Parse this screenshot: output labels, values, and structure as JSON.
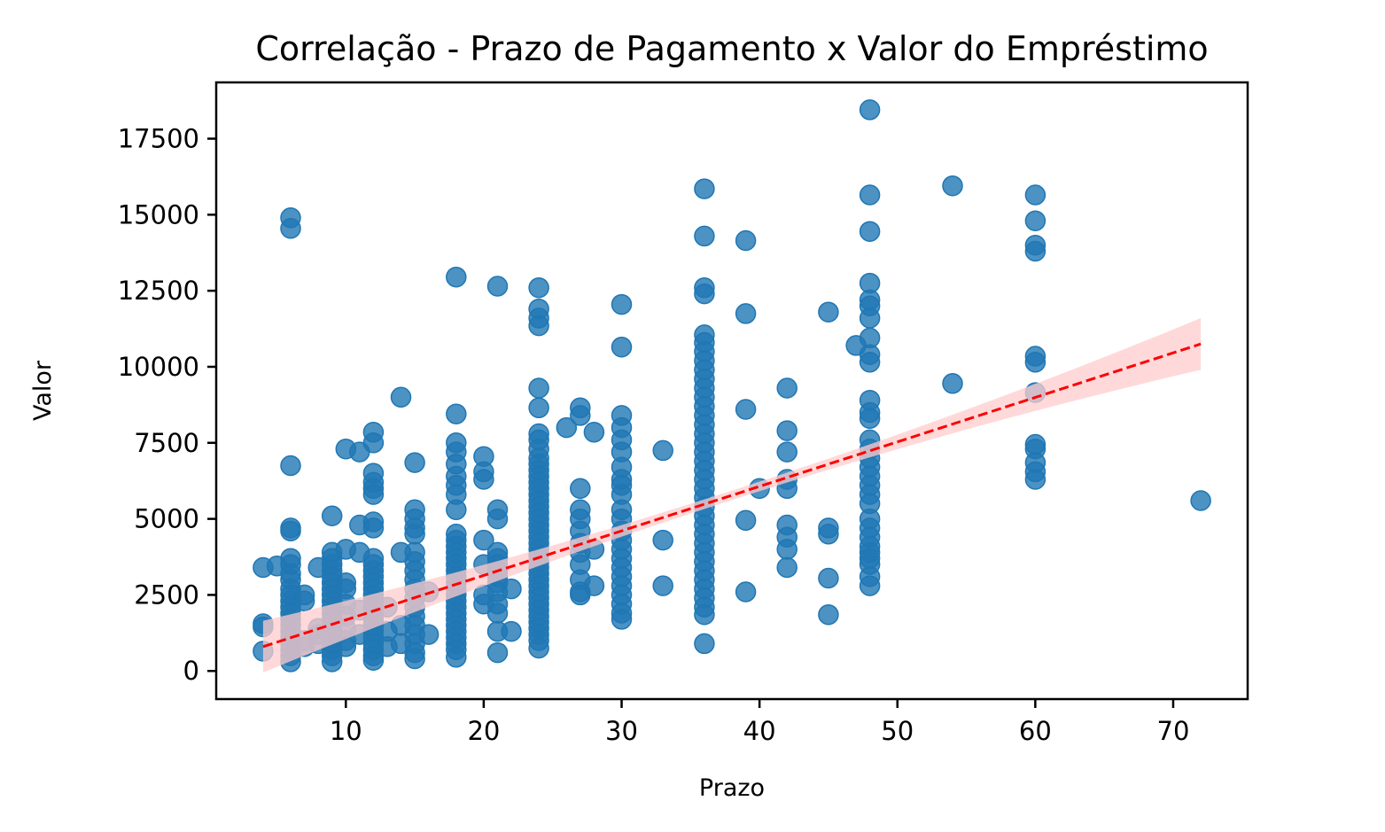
{
  "chart_data": {
    "type": "scatter",
    "title": "Correlação - Prazo de Pagamento x Valor do Empréstimo",
    "xlabel": "Prazo",
    "ylabel": "Valor",
    "xlim": [
      0.6,
      75.4
    ],
    "ylim": [
      -925,
      19350
    ],
    "xticks": [
      10,
      20,
      30,
      40,
      50,
      60,
      70
    ],
    "yticks": [
      0,
      2500,
      5000,
      7500,
      10000,
      12500,
      15000,
      17500
    ],
    "grid": false,
    "colors": {
      "points": "#1f77b4",
      "regression": "#ff0000",
      "confidence_band": "#ffcccc"
    },
    "regression": {
      "x": [
        4,
        72
      ],
      "y": [
        800,
        10750
      ],
      "ci_lower_end": 9900,
      "ci_upper_end": 11600
    },
    "points": [
      [
        4,
        3400
      ],
      [
        4,
        1550
      ],
      [
        4,
        1450
      ],
      [
        4,
        650
      ],
      [
        5,
        3450
      ],
      [
        6,
        14900
      ],
      [
        6,
        14550
      ],
      [
        6,
        6750
      ],
      [
        6,
        4700
      ],
      [
        6,
        4600
      ],
      [
        6,
        3700
      ],
      [
        6,
        3500
      ],
      [
        6,
        3200
      ],
      [
        6,
        3000
      ],
      [
        6,
        2700
      ],
      [
        6,
        2500
      ],
      [
        6,
        2300
      ],
      [
        6,
        2100
      ],
      [
        6,
        1900
      ],
      [
        6,
        1700
      ],
      [
        6,
        1500
      ],
      [
        6,
        1300
      ],
      [
        6,
        1100
      ],
      [
        6,
        900
      ],
      [
        6,
        700
      ],
      [
        6,
        500
      ],
      [
        6,
        300
      ],
      [
        7,
        2500
      ],
      [
        7,
        2300
      ],
      [
        7,
        1000
      ],
      [
        7,
        800
      ],
      [
        8,
        3400
      ],
      [
        8,
        1400
      ],
      [
        8,
        1200
      ],
      [
        8,
        900
      ],
      [
        9,
        5100
      ],
      [
        9,
        3900
      ],
      [
        9,
        3700
      ],
      [
        9,
        3500
      ],
      [
        9,
        3300
      ],
      [
        9,
        3100
      ],
      [
        9,
        2900
      ],
      [
        9,
        2700
      ],
      [
        9,
        2500
      ],
      [
        9,
        2300
      ],
      [
        9,
        2100
      ],
      [
        9,
        1900
      ],
      [
        9,
        1700
      ],
      [
        9,
        1500
      ],
      [
        9,
        1300
      ],
      [
        9,
        1100
      ],
      [
        9,
        900
      ],
      [
        9,
        700
      ],
      [
        9,
        500
      ],
      [
        9,
        300
      ],
      [
        10,
        7300
      ],
      [
        10,
        4000
      ],
      [
        10,
        2900
      ],
      [
        10,
        2700
      ],
      [
        10,
        2200
      ],
      [
        10,
        1800
      ],
      [
        10,
        1400
      ],
      [
        10,
        1000
      ],
      [
        10,
        800
      ],
      [
        11,
        7200
      ],
      [
        11,
        4800
      ],
      [
        11,
        3900
      ],
      [
        11,
        2000
      ],
      [
        11,
        1200
      ],
      [
        12,
        7850
      ],
      [
        12,
        7500
      ],
      [
        12,
        6500
      ],
      [
        12,
        6200
      ],
      [
        12,
        6000
      ],
      [
        12,
        5800
      ],
      [
        12,
        4900
      ],
      [
        12,
        4700
      ],
      [
        12,
        3700
      ],
      [
        12,
        3500
      ],
      [
        12,
        3300
      ],
      [
        12,
        3100
      ],
      [
        12,
        2900
      ],
      [
        12,
        2700
      ],
      [
        12,
        2500
      ],
      [
        12,
        2300
      ],
      [
        12,
        2100
      ],
      [
        12,
        1900
      ],
      [
        12,
        1700
      ],
      [
        12,
        1500
      ],
      [
        12,
        1300
      ],
      [
        12,
        1100
      ],
      [
        12,
        900
      ],
      [
        12,
        700
      ],
      [
        12,
        500
      ],
      [
        12,
        350
      ],
      [
        13,
        2100
      ],
      [
        13,
        1300
      ],
      [
        13,
        800
      ],
      [
        14,
        9000
      ],
      [
        14,
        3900
      ],
      [
        14,
        1500
      ],
      [
        14,
        900
      ],
      [
        15,
        6850
      ],
      [
        15,
        5300
      ],
      [
        15,
        5000
      ],
      [
        15,
        4700
      ],
      [
        15,
        4500
      ],
      [
        15,
        3900
      ],
      [
        15,
        3600
      ],
      [
        15,
        3300
      ],
      [
        15,
        3000
      ],
      [
        15,
        2700
      ],
      [
        15,
        2400
      ],
      [
        15,
        2100
      ],
      [
        15,
        1800
      ],
      [
        15,
        1500
      ],
      [
        15,
        1200
      ],
      [
        15,
        900
      ],
      [
        15,
        600
      ],
      [
        15,
        400
      ],
      [
        16,
        2600
      ],
      [
        16,
        1200
      ],
      [
        18,
        12950
      ],
      [
        18,
        8450
      ],
      [
        18,
        7500
      ],
      [
        18,
        7200
      ],
      [
        18,
        6800
      ],
      [
        18,
        6400
      ],
      [
        18,
        6100
      ],
      [
        18,
        5800
      ],
      [
        18,
        5300
      ],
      [
        18,
        4500
      ],
      [
        18,
        4300
      ],
      [
        18,
        4100
      ],
      [
        18,
        3900
      ],
      [
        18,
        3700
      ],
      [
        18,
        3500
      ],
      [
        18,
        3300
      ],
      [
        18,
        3100
      ],
      [
        18,
        2900
      ],
      [
        18,
        2700
      ],
      [
        18,
        2500
      ],
      [
        18,
        2300
      ],
      [
        18,
        2100
      ],
      [
        18,
        1900
      ],
      [
        18,
        1700
      ],
      [
        18,
        1500
      ],
      [
        18,
        1300
      ],
      [
        18,
        1100
      ],
      [
        18,
        900
      ],
      [
        18,
        700
      ],
      [
        18,
        450
      ],
      [
        20,
        7050
      ],
      [
        20,
        6550
      ],
      [
        20,
        6300
      ],
      [
        20,
        4300
      ],
      [
        20,
        3500
      ],
      [
        20,
        2500
      ],
      [
        20,
        2200
      ],
      [
        21,
        12650
      ],
      [
        21,
        5300
      ],
      [
        21,
        5000
      ],
      [
        21,
        3900
      ],
      [
        21,
        3700
      ],
      [
        21,
        3500
      ],
      [
        21,
        3300
      ],
      [
        21,
        3100
      ],
      [
        21,
        2900
      ],
      [
        21,
        2600
      ],
      [
        21,
        2200
      ],
      [
        21,
        1900
      ],
      [
        21,
        1300
      ],
      [
        21,
        600
      ],
      [
        22,
        2700
      ],
      [
        22,
        1300
      ],
      [
        24,
        12600
      ],
      [
        24,
        11900
      ],
      [
        24,
        11600
      ],
      [
        24,
        11350
      ],
      [
        24,
        9300
      ],
      [
        24,
        8650
      ],
      [
        24,
        7800
      ],
      [
        24,
        7600
      ],
      [
        24,
        7300
      ],
      [
        24,
        7000
      ],
      [
        24,
        6800
      ],
      [
        24,
        6600
      ],
      [
        24,
        6400
      ],
      [
        24,
        6200
      ],
      [
        24,
        6000
      ],
      [
        24,
        5800
      ],
      [
        24,
        5600
      ],
      [
        24,
        5400
      ],
      [
        24,
        5200
      ],
      [
        24,
        5000
      ],
      [
        24,
        4800
      ],
      [
        24,
        4600
      ],
      [
        24,
        4400
      ],
      [
        24,
        4200
      ],
      [
        24,
        4000
      ],
      [
        24,
        3800
      ],
      [
        24,
        3600
      ],
      [
        24,
        3400
      ],
      [
        24,
        3200
      ],
      [
        24,
        3000
      ],
      [
        24,
        2800
      ],
      [
        24,
        2600
      ],
      [
        24,
        2400
      ],
      [
        24,
        2200
      ],
      [
        24,
        2000
      ],
      [
        24,
        1800
      ],
      [
        24,
        1600
      ],
      [
        24,
        1400
      ],
      [
        24,
        1200
      ],
      [
        24,
        1000
      ],
      [
        24,
        750
      ],
      [
        26,
        8000
      ],
      [
        27,
        8650
      ],
      [
        27,
        8400
      ],
      [
        27,
        6000
      ],
      [
        27,
        5300
      ],
      [
        27,
        5000
      ],
      [
        27,
        4600
      ],
      [
        27,
        4200
      ],
      [
        27,
        3900
      ],
      [
        27,
        3500
      ],
      [
        27,
        3000
      ],
      [
        27,
        2600
      ],
      [
        27,
        2500
      ],
      [
        28,
        7850
      ],
      [
        28,
        4000
      ],
      [
        28,
        2800
      ],
      [
        30,
        12050
      ],
      [
        30,
        10650
      ],
      [
        30,
        8400
      ],
      [
        30,
        8000
      ],
      [
        30,
        7600
      ],
      [
        30,
        7200
      ],
      [
        30,
        6700
      ],
      [
        30,
        6300
      ],
      [
        30,
        6100
      ],
      [
        30,
        5800
      ],
      [
        30,
        5300
      ],
      [
        30,
        5000
      ],
      [
        30,
        4600
      ],
      [
        30,
        4300
      ],
      [
        30,
        4000
      ],
      [
        30,
        3700
      ],
      [
        30,
        3400
      ],
      [
        30,
        3100
      ],
      [
        30,
        2800
      ],
      [
        30,
        2500
      ],
      [
        30,
        2200
      ],
      [
        30,
        1900
      ],
      [
        30,
        1700
      ],
      [
        33,
        7250
      ],
      [
        33,
        4300
      ],
      [
        33,
        2800
      ],
      [
        36,
        15850
      ],
      [
        36,
        14300
      ],
      [
        36,
        12600
      ],
      [
        36,
        12400
      ],
      [
        36,
        11050
      ],
      [
        36,
        10800
      ],
      [
        36,
        10500
      ],
      [
        36,
        10200
      ],
      [
        36,
        9900
      ],
      [
        36,
        9600
      ],
      [
        36,
        9300
      ],
      [
        36,
        9000
      ],
      [
        36,
        8700
      ],
      [
        36,
        8400
      ],
      [
        36,
        8100
      ],
      [
        36,
        7800
      ],
      [
        36,
        7500
      ],
      [
        36,
        7200
      ],
      [
        36,
        6900
      ],
      [
        36,
        6600
      ],
      [
        36,
        6300
      ],
      [
        36,
        6000
      ],
      [
        36,
        5700
      ],
      [
        36,
        5400
      ],
      [
        36,
        5100
      ],
      [
        36,
        4800
      ],
      [
        36,
        4500
      ],
      [
        36,
        4200
      ],
      [
        36,
        3900
      ],
      [
        36,
        3600
      ],
      [
        36,
        3300
      ],
      [
        36,
        3000
      ],
      [
        36,
        2700
      ],
      [
        36,
        2400
      ],
      [
        36,
        2100
      ],
      [
        36,
        1850
      ],
      [
        36,
        900
      ],
      [
        39,
        14150
      ],
      [
        39,
        11750
      ],
      [
        39,
        8600
      ],
      [
        39,
        4950
      ],
      [
        39,
        2600
      ],
      [
        40,
        6000
      ],
      [
        42,
        9300
      ],
      [
        42,
        7900
      ],
      [
        42,
        7200
      ],
      [
        42,
        6300
      ],
      [
        42,
        6000
      ],
      [
        42,
        4800
      ],
      [
        42,
        4400
      ],
      [
        42,
        4000
      ],
      [
        42,
        3400
      ],
      [
        45,
        11800
      ],
      [
        45,
        4700
      ],
      [
        45,
        4500
      ],
      [
        45,
        3050
      ],
      [
        45,
        1850
      ],
      [
        47,
        10700
      ],
      [
        48,
        18450
      ],
      [
        48,
        15650
      ],
      [
        48,
        14450
      ],
      [
        48,
        12750
      ],
      [
        48,
        12200
      ],
      [
        48,
        12000
      ],
      [
        48,
        11600
      ],
      [
        48,
        10950
      ],
      [
        48,
        10400
      ],
      [
        48,
        10150
      ],
      [
        48,
        8900
      ],
      [
        48,
        8500
      ],
      [
        48,
        8300
      ],
      [
        48,
        7600
      ],
      [
        48,
        7300
      ],
      [
        48,
        7000
      ],
      [
        48,
        6700
      ],
      [
        48,
        6400
      ],
      [
        48,
        6100
      ],
      [
        48,
        5800
      ],
      [
        48,
        5500
      ],
      [
        48,
        5000
      ],
      [
        48,
        4700
      ],
      [
        48,
        4400
      ],
      [
        48,
        4100
      ],
      [
        48,
        3900
      ],
      [
        48,
        3700
      ],
      [
        48,
        3500
      ],
      [
        48,
        3100
      ],
      [
        48,
        2800
      ],
      [
        54,
        15950
      ],
      [
        54,
        9450
      ],
      [
        60,
        15650
      ],
      [
        60,
        14800
      ],
      [
        60,
        14000
      ],
      [
        60,
        13800
      ],
      [
        60,
        10350
      ],
      [
        60,
        10150
      ],
      [
        60,
        9150
      ],
      [
        60,
        7450
      ],
      [
        60,
        7300
      ],
      [
        60,
        6850
      ],
      [
        60,
        6550
      ],
      [
        60,
        6300
      ],
      [
        72,
        5600
      ]
    ]
  }
}
